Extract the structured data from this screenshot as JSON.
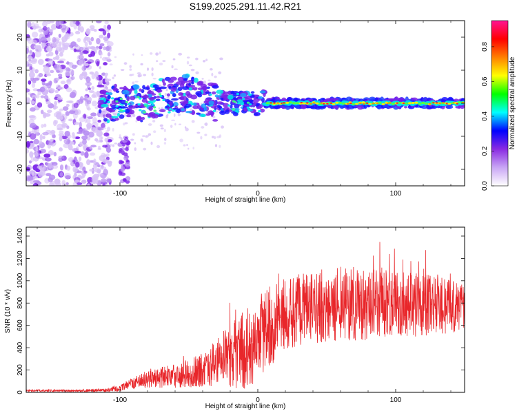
{
  "figure": {
    "title": "S199.2025.291.11.42.R21"
  },
  "chart_data": [
    {
      "type": "heatmap",
      "title": "",
      "xlabel": "Height of straight line (km)",
      "ylabel": "Frequency (Hz)",
      "xlim": [
        -168,
        150
      ],
      "ylim": [
        -25,
        25
      ],
      "xticks": [
        -100,
        0,
        100
      ],
      "xtick_labels": [
        "-100",
        "0",
        "100"
      ],
      "yticks": [
        -20,
        -10,
        0,
        10,
        20
      ],
      "ytick_labels": [
        "-20",
        "-10",
        "0",
        "10",
        "20"
      ],
      "grid": false,
      "description_of_structure": {
        "noise_region_end_km": -115,
        "band_center_hz": 0,
        "strong_band_start_km": 5
      },
      "colorbar": {
        "label": "Normalized spectral amplitude",
        "range": [
          0,
          0.95
        ],
        "ticks": [
          0.0,
          0.2,
          0.4,
          0.6,
          0.8
        ],
        "tick_labels": [
          "0.0",
          "0.2",
          "0.4",
          "0.6",
          "0.8"
        ],
        "colors": [
          "#ffffff",
          "#c9a6f5",
          "#8a2be2",
          "#0000ff",
          "#00ffff",
          "#00ff00",
          "#ffff00",
          "#ff8000",
          "#ff0000",
          "#ff1493"
        ]
      }
    },
    {
      "type": "line",
      "title": "",
      "xlabel": "Height of straight line (km)",
      "ylabel": "SNR (10 * v/v)",
      "xlim": [
        -168,
        150
      ],
      "ylim": [
        0,
        1480
      ],
      "xticks": [
        -100,
        0,
        100
      ],
      "xtick_labels": [
        "-100",
        "0",
        "100"
      ],
      "yticks": [
        0,
        200,
        400,
        600,
        800,
        1000,
        1200,
        1400
      ],
      "ytick_labels": [
        "0",
        "200",
        "400",
        "600",
        "800",
        "1000",
        "1200",
        "1400"
      ],
      "grid": false,
      "series": [
        {
          "name": "SNR",
          "color": "#e8262a",
          "envelope_x": [
            -168,
            -130,
            -110,
            -100,
            -90,
            -80,
            -60,
            -40,
            -30,
            -20,
            -10,
            0,
            10,
            20,
            40,
            60,
            70,
            80,
            100,
            120,
            140,
            150
          ],
          "envelope_mean": [
            15,
            15,
            20,
            40,
            80,
            120,
            150,
            200,
            260,
            330,
            380,
            480,
            600,
            680,
            760,
            800,
            820,
            790,
            790,
            780,
            770,
            760
          ],
          "envelope_spread": [
            10,
            10,
            15,
            30,
            60,
            80,
            110,
            150,
            220,
            300,
            350,
            380,
            360,
            350,
            330,
            340,
            360,
            320,
            300,
            280,
            250,
            220
          ]
        }
      ]
    }
  ]
}
